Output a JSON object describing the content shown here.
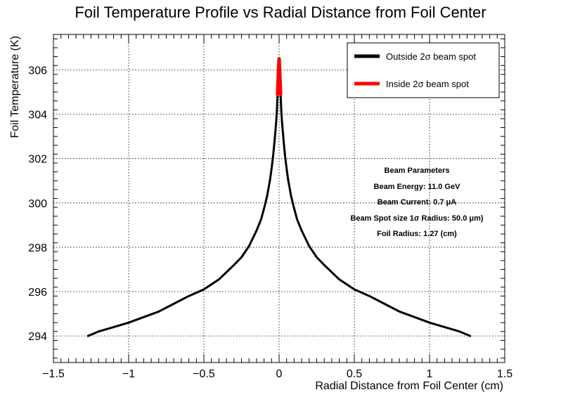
{
  "chart_data": {
    "type": "line",
    "title": "Foil Temperature Profile vs Radial Distance from Foil Center",
    "xlabel": "Radial Distance from Foil Center (cm)",
    "ylabel": "Foil Temperature (K)",
    "xlim": [
      -1.5,
      1.5
    ],
    "ylim": [
      292.8,
      307.6
    ],
    "xticks": [
      -1.5,
      -1,
      -0.5,
      0,
      0.5,
      1,
      1.5
    ],
    "xtick_labels": [
      "−1.5",
      "−1",
      "−0.5",
      "0",
      "0.5",
      "1",
      "1.5"
    ],
    "yticks": [
      294,
      296,
      298,
      300,
      302,
      304,
      306
    ],
    "ytick_labels": [
      "294",
      "296",
      "298",
      "300",
      "302",
      "304",
      "306"
    ],
    "grid": true,
    "legend_position": "top-right",
    "series": [
      {
        "name": "Outside 2σ beam spot",
        "color": "#000000",
        "x": [
          -1.27,
          -1.2,
          -1.1,
          -1.0,
          -0.9,
          -0.8,
          -0.7,
          -0.6,
          -0.5,
          -0.4,
          -0.3,
          -0.25,
          -0.2,
          -0.15,
          -0.12,
          -0.1,
          -0.08,
          -0.06,
          -0.05,
          -0.04,
          -0.03,
          -0.02,
          -0.015,
          -0.01,
          0.01,
          0.015,
          0.02,
          0.03,
          0.04,
          0.05,
          0.06,
          0.08,
          0.1,
          0.12,
          0.15,
          0.2,
          0.25,
          0.3,
          0.4,
          0.5,
          0.6,
          0.7,
          0.8,
          0.9,
          1.0,
          1.1,
          1.2,
          1.27
        ],
        "y": [
          294.0,
          294.2,
          294.4,
          294.6,
          294.85,
          295.1,
          295.45,
          295.8,
          296.1,
          296.55,
          297.2,
          297.55,
          298.05,
          298.75,
          299.25,
          299.75,
          300.3,
          301.05,
          301.55,
          302.1,
          302.8,
          303.6,
          304.1,
          304.9,
          304.9,
          304.1,
          303.6,
          302.8,
          302.1,
          301.55,
          301.05,
          300.3,
          299.75,
          299.25,
          298.75,
          298.05,
          297.55,
          297.2,
          296.55,
          296.1,
          295.8,
          295.45,
          295.1,
          294.85,
          294.6,
          294.4,
          294.2,
          294.0
        ]
      },
      {
        "name": "Inside 2σ beam spot",
        "color": "#ff0000",
        "x": [
          -0.01,
          -0.007,
          -0.004,
          0.0,
          0.004,
          0.007,
          0.01
        ],
        "y": [
          304.9,
          305.4,
          305.9,
          306.5,
          305.9,
          305.4,
          304.9
        ]
      }
    ],
    "annotations": [
      "Beam Parameters",
      "Beam Energy: 11.0 GeV",
      "Beam Current: 0.7 μA",
      "Beam Spot size 1σ Radius: 50.0 μm)",
      "Foil Radius: 1.27 (cm)"
    ]
  }
}
